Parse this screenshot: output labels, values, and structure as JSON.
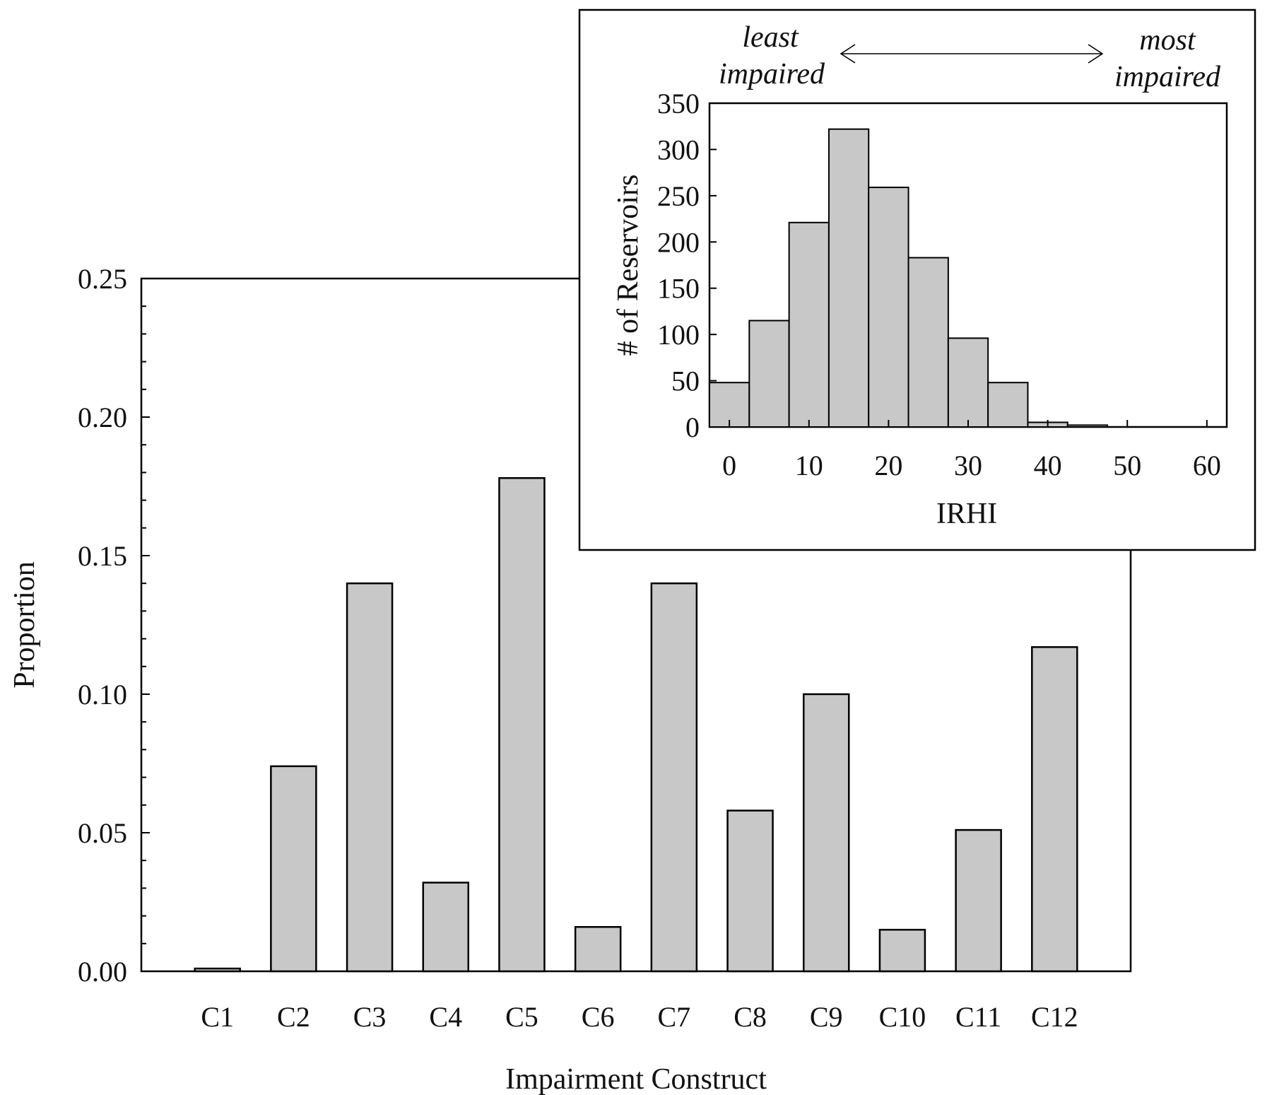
{
  "colors": {
    "bar_fill": "#c8c8c8",
    "bar_stroke": "#000000",
    "axis": "#000000",
    "background": "#ffffff"
  },
  "chart_data": [
    {
      "type": "bar",
      "title": "",
      "xlabel": "Impairment Construct",
      "ylabel": "Proportion",
      "categories": [
        "C1",
        "C2",
        "C3",
        "C4",
        "C5",
        "C6",
        "C7",
        "C8",
        "C9",
        "C10",
        "C11",
        "C12"
      ],
      "values": [
        0.001,
        0.074,
        0.14,
        0.032,
        0.178,
        0.016,
        0.14,
        0.058,
        0.1,
        0.015,
        0.051,
        0.117
      ],
      "ylim": [
        0,
        0.25
      ],
      "yticks": [
        "0.00",
        "0.05",
        "0.10",
        "0.15",
        "0.20",
        "0.25"
      ],
      "grid": false,
      "legend": "none"
    },
    {
      "type": "bar",
      "title": "",
      "xlabel": "IRHI",
      "ylabel": "# of Reservoirs",
      "bin_centers": [
        0,
        5,
        10,
        15,
        20,
        25,
        30,
        35,
        40,
        45,
        50,
        55,
        60
      ],
      "bin_width": 5,
      "values": [
        48,
        115,
        221,
        322,
        259,
        183,
        96,
        48,
        5,
        2,
        0,
        0,
        0
      ],
      "xlim": [
        -2.5,
        62.5
      ],
      "ylim": [
        0,
        350
      ],
      "xticks": [
        "0",
        "10",
        "20",
        "30",
        "40",
        "50",
        "60"
      ],
      "yticks": [
        "0",
        "50",
        "100",
        "150",
        "200",
        "250",
        "300",
        "350"
      ],
      "annotations": {
        "left_line1": "least",
        "left_line2": "impaired",
        "right_line1": "most",
        "right_line2": "impaired"
      },
      "grid": false,
      "legend": "none"
    }
  ]
}
